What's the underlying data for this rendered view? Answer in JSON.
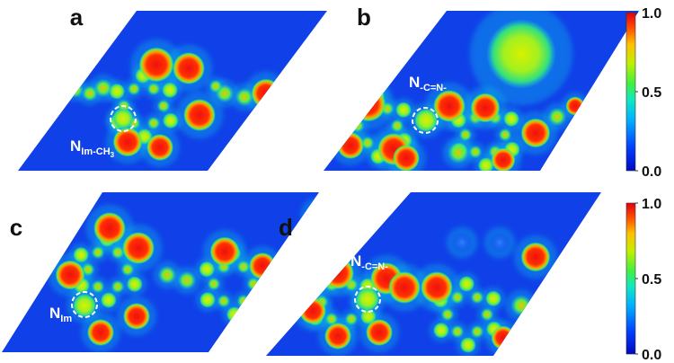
{
  "figure": {
    "panels": [
      {
        "letter": "a",
        "annotation": {
          "main": "N",
          "sub": "Im-CH",
          "sub2": "3"
        }
      },
      {
        "letter": "b",
        "annotation": {
          "main": "N",
          "sub": "-C=N-"
        }
      },
      {
        "letter": "c",
        "annotation": {
          "main": "N",
          "sub": "Im"
        }
      },
      {
        "letter": "d",
        "annotation": {
          "main": "N",
          "sub": "-C=N-"
        }
      }
    ],
    "colorbars": [
      {
        "ticks": [
          "1.0",
          "0.5",
          "0.0"
        ]
      },
      {
        "ticks": [
          "1.0",
          "0.5",
          "0.0"
        ]
      }
    ],
    "colormap": {
      "background": "#1040e8",
      "stops": [
        "#0008c0",
        "#0040ff",
        "#00b0ff",
        "#10e8c0",
        "#40f040",
        "#c0f000",
        "#ffc000",
        "#ff5000",
        "#e00010"
      ]
    }
  }
}
